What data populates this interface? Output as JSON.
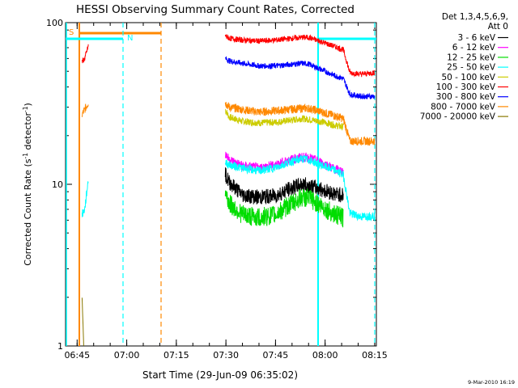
{
  "chart_data": {
    "type": "line",
    "title": "HESSI Observing Summary Count Rates, Corrected",
    "xlabel": "Start Time (29-Jun-09 06:35:02)",
    "ylabel_main": "Corrected Count Rate (s",
    "ylabel_sup1": "-1",
    "ylabel_mid": " detector",
    "ylabel_sup2": "-1",
    "ylabel_end": ")",
    "y_scale": "log",
    "ylim": [
      1,
      100
    ],
    "xlim_minutes": [
      6.5,
      100.5
    ],
    "x_ticks": [
      {
        "label": "06:45",
        "minutes": 45
      },
      {
        "label": "07:00",
        "minutes": 60
      },
      {
        "label": "07:15",
        "minutes": 75
      },
      {
        "label": "07:30",
        "minutes": 90
      },
      {
        "label": "07:45",
        "minutes": 105
      },
      {
        "label": "08:00",
        "minutes": 120
      },
      {
        "label": "08:15",
        "minutes": 135
      }
    ],
    "x_origin_minutes": 35.0,
    "y_ticks": [
      {
        "label": "1",
        "value": 1
      },
      {
        "label": "10",
        "value": 10
      },
      {
        "label": "100",
        "value": 100
      }
    ],
    "legend_header": [
      "Det 1,3,4,5,6,9,",
      "Att 0"
    ],
    "legend_position": "right",
    "series": [
      {
        "name": "3 - 6 keV",
        "color": "#000000",
        "points": [
          [
            54.8,
            11.5
          ],
          [
            56,
            10.3
          ],
          [
            60,
            8.6
          ],
          [
            65,
            8.3
          ],
          [
            70,
            8.5
          ],
          [
            74,
            9.3
          ],
          [
            78,
            10.0
          ],
          [
            80,
            9.8
          ],
          [
            84,
            9.3
          ],
          [
            88,
            8.7
          ],
          [
            90.5,
            8.6
          ]
        ]
      },
      {
        "name": "6 - 12 keV",
        "color": "#ff00ff",
        "points": [
          [
            54.8,
            15.5
          ],
          [
            56,
            14.2
          ],
          [
            60,
            13.0
          ],
          [
            65,
            12.6
          ],
          [
            70,
            13.2
          ],
          [
            74,
            14.1
          ],
          [
            78,
            14.7
          ],
          [
            80,
            14.6
          ],
          [
            84,
            13.6
          ],
          [
            88,
            12.4
          ],
          [
            90.5,
            12.0
          ]
        ]
      },
      {
        "name": "12 - 25 keV",
        "color": "#00dd00",
        "points": [
          [
            54.8,
            9.0
          ],
          [
            56,
            7.6
          ],
          [
            60,
            6.5
          ],
          [
            65,
            6.2
          ],
          [
            70,
            6.5
          ],
          [
            74,
            7.4
          ],
          [
            78,
            8.3
          ],
          [
            80,
            8.2
          ],
          [
            84,
            7.3
          ],
          [
            88,
            6.5
          ],
          [
            90.5,
            6.2
          ]
        ]
      },
      {
        "name": "25 - 50 keV",
        "color": "#00ffff",
        "points": [
          [
            11.5,
            6.5
          ],
          [
            12.3,
            7.0
          ],
          [
            13.4,
            10.8
          ],
          [
            54.8,
            13.6
          ],
          [
            56,
            13.2
          ],
          [
            60,
            12.6
          ],
          [
            65,
            12.1
          ],
          [
            70,
            12.7
          ],
          [
            74,
            13.7
          ],
          [
            78,
            14.4
          ],
          [
            80,
            14.2
          ],
          [
            84,
            13.1
          ],
          [
            88,
            12.2
          ],
          [
            90.5,
            11.4
          ],
          [
            92.5,
            6.6
          ],
          [
            96,
            6.3
          ],
          [
            100,
            6.4
          ]
        ]
      },
      {
        "name": "50 - 100 keV",
        "color": "#cccc00",
        "points": [
          [
            54.8,
            29
          ],
          [
            56,
            26
          ],
          [
            60,
            24.5
          ],
          [
            65,
            24.0
          ],
          [
            70,
            24.2
          ],
          [
            74,
            24.8
          ],
          [
            78,
            25.5
          ],
          [
            80,
            25.2
          ],
          [
            84,
            24.4
          ],
          [
            88,
            23.2
          ],
          [
            90.5,
            22.6
          ]
        ]
      },
      {
        "name": "100 - 300 keV",
        "color": "#ff0000",
        "points": [
          [
            11.5,
            57
          ],
          [
            12.3,
            60
          ],
          [
            13.4,
            72
          ],
          [
            54.8,
            83
          ],
          [
            56,
            80
          ],
          [
            60,
            78
          ],
          [
            65,
            77
          ],
          [
            70,
            78
          ],
          [
            74,
            79.5
          ],
          [
            78,
            81
          ],
          [
            80,
            81
          ],
          [
            84,
            76
          ],
          [
            88,
            71
          ],
          [
            90.5,
            68
          ],
          [
            92.5,
            49
          ],
          [
            96,
            48
          ],
          [
            100,
            49
          ]
        ]
      },
      {
        "name": "300 - 800 keV",
        "color": "#0000ff",
        "points": [
          [
            54.8,
            60
          ],
          [
            56,
            58
          ],
          [
            60,
            56
          ],
          [
            65,
            54
          ],
          [
            70,
            54
          ],
          [
            74,
            55
          ],
          [
            78,
            56
          ],
          [
            80,
            55.5
          ],
          [
            84,
            51
          ],
          [
            88,
            47
          ],
          [
            90.5,
            45
          ],
          [
            92.5,
            36
          ],
          [
            96,
            35
          ],
          [
            100,
            35
          ]
        ]
      },
      {
        "name": "800 - 7000 keV",
        "color": "#ff8800",
        "points": [
          [
            11.5,
            27
          ],
          [
            12.3,
            29
          ],
          [
            13.4,
            32
          ],
          [
            54.8,
            32
          ],
          [
            56,
            30
          ],
          [
            60,
            29
          ],
          [
            65,
            28
          ],
          [
            70,
            28.5
          ],
          [
            74,
            29
          ],
          [
            78,
            29.5
          ],
          [
            80,
            29.5
          ],
          [
            84,
            28
          ],
          [
            88,
            26.5
          ],
          [
            90.5,
            25.5
          ],
          [
            92.5,
            18.5
          ],
          [
            96,
            18.5
          ],
          [
            100,
            18.5
          ]
        ]
      },
      {
        "name": "7000 - 20000 keV",
        "color": "#887700",
        "points": [
          [
            11.5,
            2.0
          ],
          [
            12.0,
            1.0
          ]
        ]
      }
    ],
    "annotations": [
      {
        "text": "S",
        "color": "#ff8800"
      },
      {
        "text": "N",
        "color": "#00ffff"
      }
    ],
    "footer_date": "9-Mar-2010 16:19"
  }
}
